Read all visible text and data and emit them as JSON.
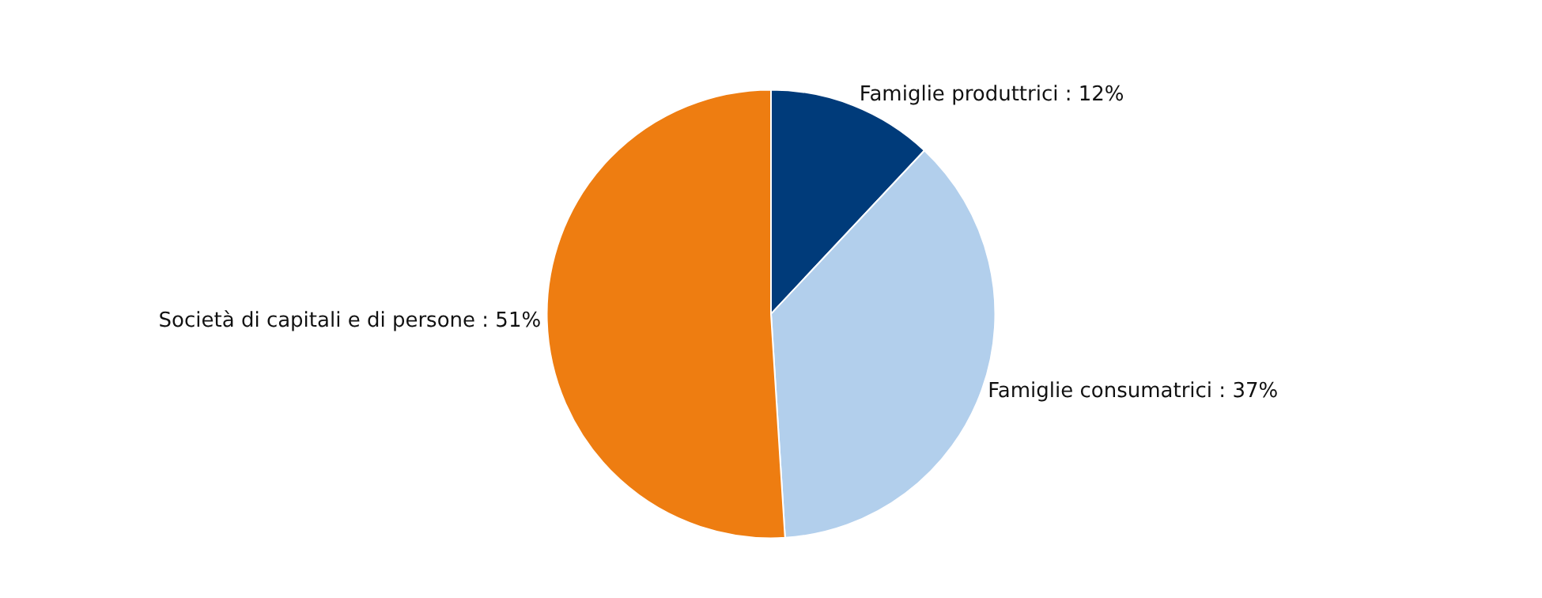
{
  "chart_data": {
    "type": "pie",
    "categories": [
      "Famiglie produttrici",
      "Famiglie consumatrici",
      "Società di capitali e di persone"
    ],
    "values": [
      12,
      37,
      51
    ],
    "colors": [
      "#003b7a",
      "#b2cfec",
      "#ee7d11"
    ],
    "value_labels": [
      "12%",
      "37%",
      "51%"
    ],
    "legend": false
  }
}
